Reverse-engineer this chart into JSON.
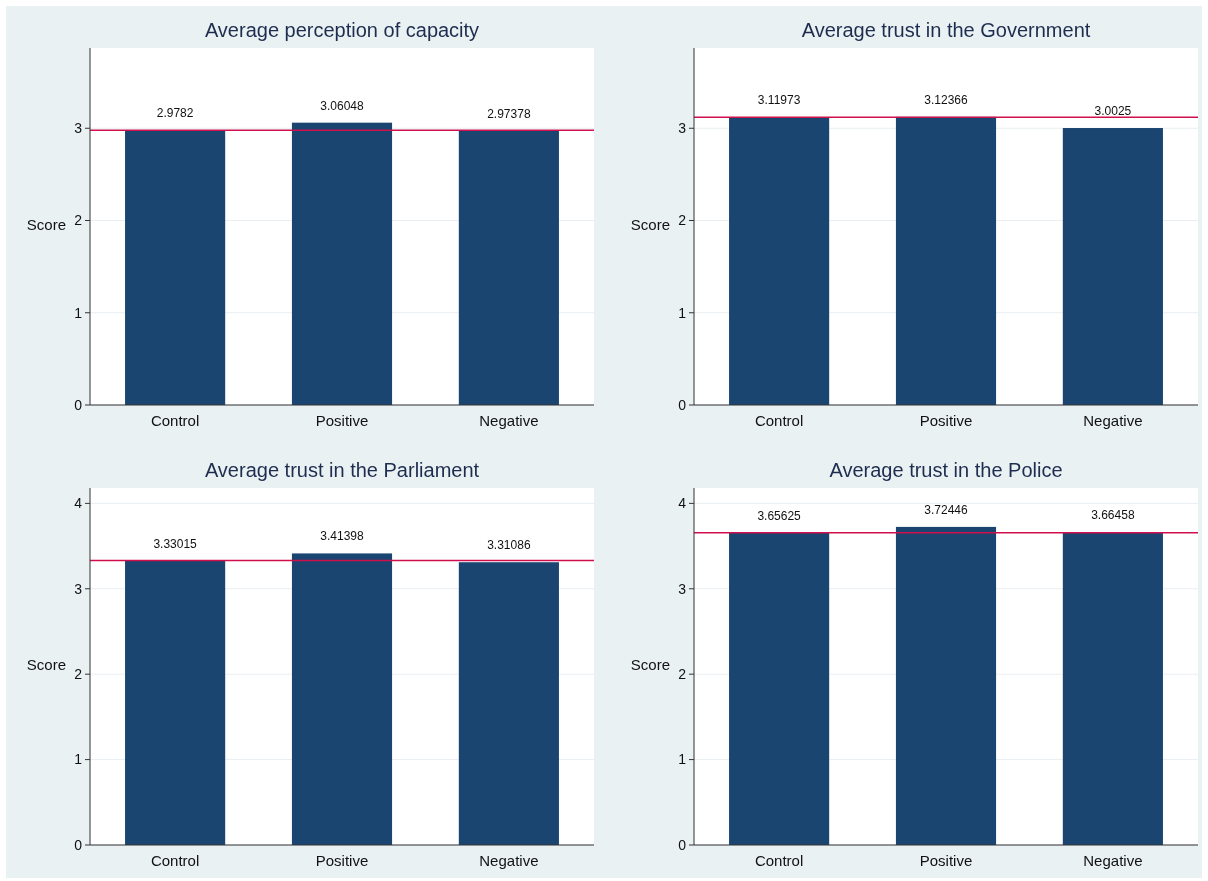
{
  "chart_data": [
    {
      "type": "bar",
      "title": "Average perception of capacity",
      "ylabel": "Score",
      "categories": [
        "Control",
        "Positive",
        "Negative"
      ],
      "values": [
        2.9782,
        3.06048,
        2.97378
      ],
      "color": "#1a4570",
      "ylim": [
        0,
        3.87
      ],
      "yticks": [
        0,
        1,
        2,
        3
      ],
      "grid": "y",
      "data_labels": true,
      "ref_lines": [
        {
          "axis": "y",
          "value": 2.9782,
          "color": "#d0104c"
        }
      ]
    },
    {
      "type": "bar",
      "title": "Average trust in the Government",
      "ylabel": "Score",
      "categories": [
        "Control",
        "Positive",
        "Negative"
      ],
      "values": [
        3.11973,
        3.12366,
        3.0025
      ],
      "color": "#1a4570",
      "ylim": [
        0,
        3.87
      ],
      "yticks": [
        0,
        1,
        2,
        3
      ],
      "grid": "y",
      "data_labels": true,
      "ref_lines": [
        {
          "axis": "y",
          "value": 3.11973,
          "color": "#d0104c"
        }
      ]
    },
    {
      "type": "bar",
      "title": "Average trust in the Parliament",
      "ylabel": "Score",
      "categories": [
        "Control",
        "Positive",
        "Negative"
      ],
      "values": [
        3.33015,
        3.41398,
        3.31086
      ],
      "color": "#1a4570",
      "ylim": [
        0,
        4.18
      ],
      "yticks": [
        0,
        1,
        2,
        3,
        4
      ],
      "grid": "y",
      "data_labels": true,
      "ref_lines": [
        {
          "axis": "y",
          "value": 3.33015,
          "color": "#d0104c"
        }
      ]
    },
    {
      "type": "bar",
      "title": "Average trust in the Police",
      "ylabel": "Score",
      "categories": [
        "Control",
        "Positive",
        "Negative"
      ],
      "values": [
        3.65625,
        3.72446,
        3.66458
      ],
      "color": "#1a4570",
      "ylim": [
        0,
        4.18
      ],
      "yticks": [
        0,
        1,
        2,
        3,
        4
      ],
      "grid": "y",
      "data_labels": true,
      "ref_lines": [
        {
          "axis": "y",
          "value": 3.65625,
          "color": "#d0104c"
        }
      ]
    }
  ]
}
